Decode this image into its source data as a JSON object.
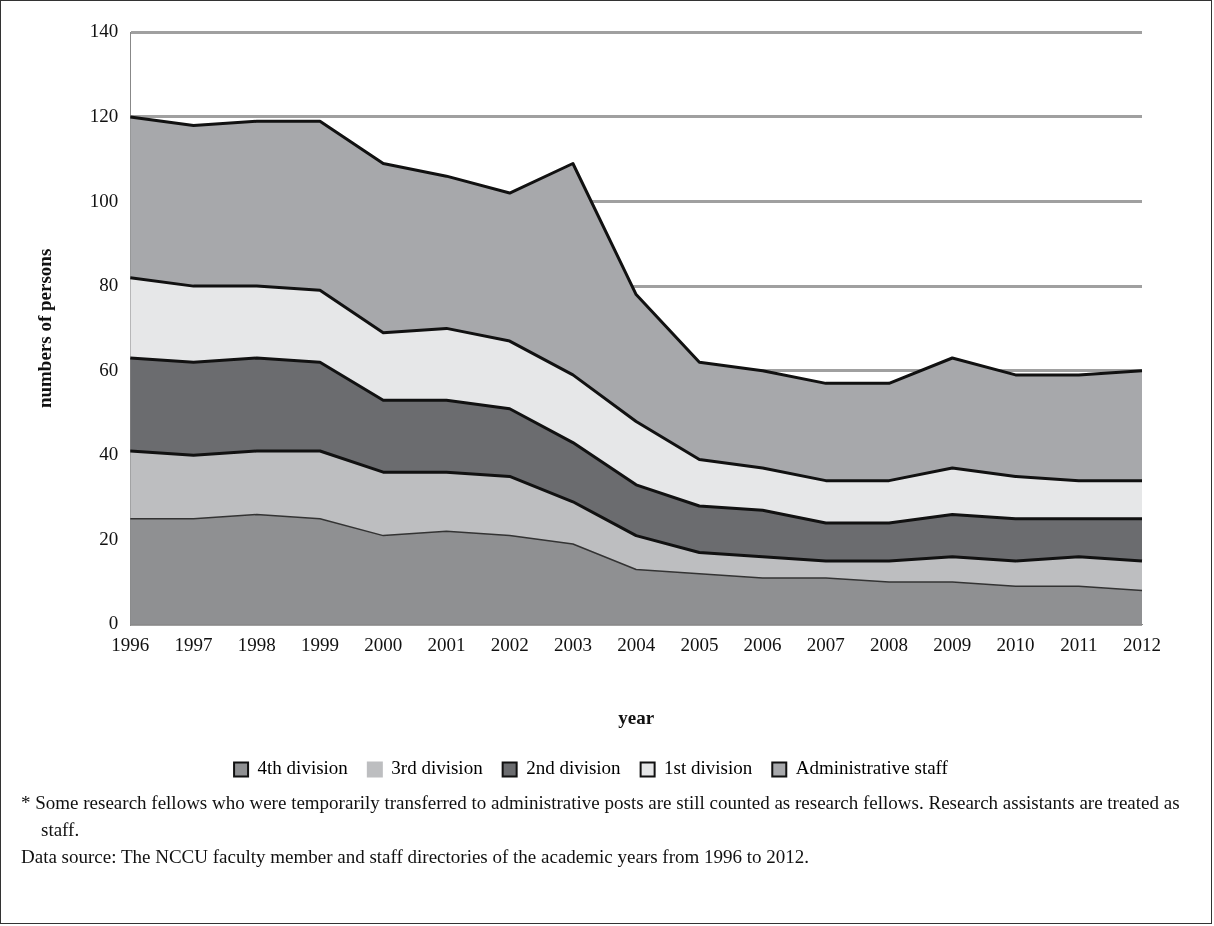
{
  "chart_data": {
    "type": "area",
    "stacked": true,
    "xlabel": "year",
    "ylabel": "numbers of persons",
    "categories": [
      "1996",
      "1997",
      "1998",
      "1999",
      "2000",
      "2001",
      "2002",
      "2003",
      "2004",
      "2005",
      "2006",
      "2007",
      "2008",
      "2009",
      "2010",
      "2011",
      "2012"
    ],
    "series": [
      {
        "name": "4th division",
        "color": "#8f9092",
        "values": [
          25,
          25,
          26,
          25,
          21,
          22,
          21,
          19,
          13,
          12,
          11,
          11,
          10,
          10,
          9,
          9,
          8
        ]
      },
      {
        "name": "3rd division",
        "color": "#bdbec0",
        "values": [
          16,
          15,
          15,
          16,
          15,
          14,
          14,
          10,
          8,
          5,
          5,
          4,
          5,
          6,
          6,
          7,
          7
        ]
      },
      {
        "name": "2nd division",
        "color": "#6b6c6f",
        "values": [
          22,
          22,
          22,
          21,
          17,
          17,
          16,
          14,
          12,
          11,
          11,
          9,
          9,
          10,
          10,
          9,
          10
        ]
      },
      {
        "name": "1st division",
        "color": "#e6e7e8",
        "values": [
          19,
          18,
          17,
          17,
          16,
          17,
          16,
          16,
          15,
          11,
          10,
          10,
          10,
          11,
          10,
          9,
          9
        ]
      },
      {
        "name": "Administrative staff",
        "color": "#a7a8ab",
        "values": [
          38,
          38,
          39,
          40,
          40,
          36,
          35,
          50,
          30,
          23,
          23,
          23,
          23,
          26,
          24,
          25,
          26
        ]
      }
    ],
    "ylim": [
      0,
      140
    ],
    "yticks": [
      0,
      20,
      40,
      60,
      80,
      100,
      120,
      140
    ],
    "grid": "y",
    "legend": "bottom",
    "marker": "none",
    "annotations": [
      "* Some research fellows who were temporarily transferred to administrative posts are still counted as research fellows.  Research assistants are treated as staff.",
      "Data source: The NCCU faculty member and staff directories of the academic years from 1996 to 2012."
    ]
  }
}
